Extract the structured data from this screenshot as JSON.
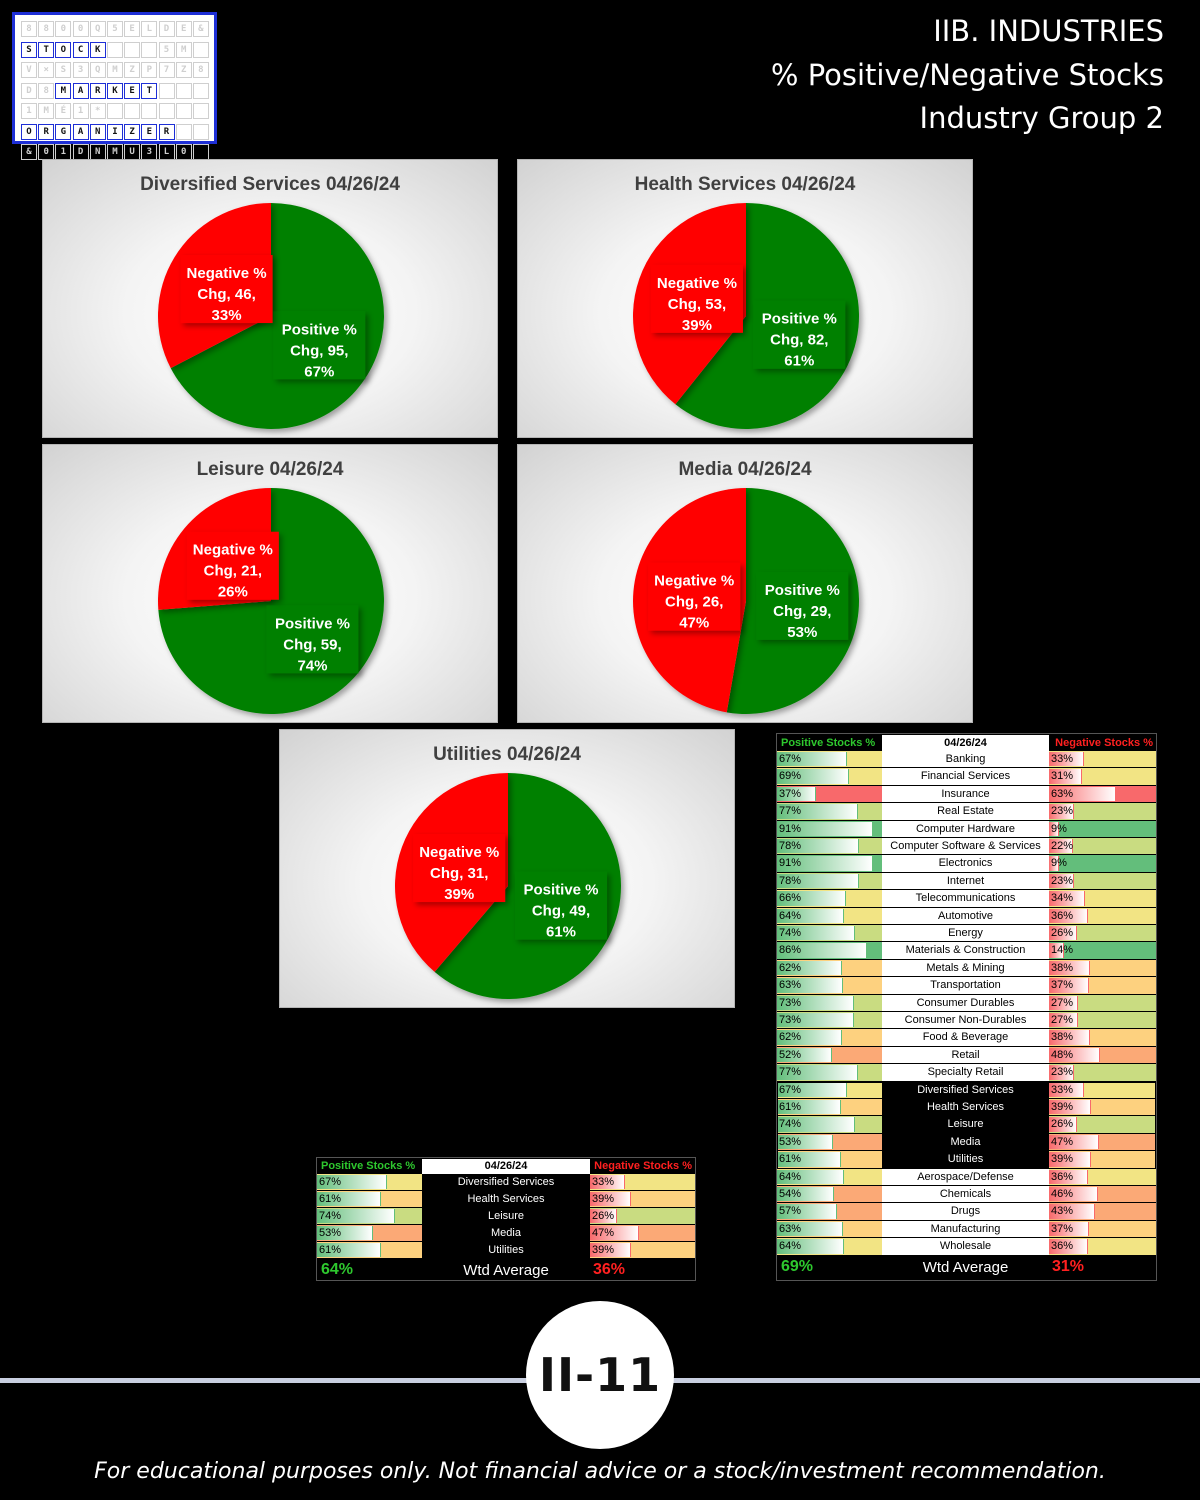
{
  "logo": {
    "rows": [
      {
        "letters": "8800Q5ELDE&",
        "on": []
      },
      {
        "letters": "STOCK   5M",
        "on": [
          0,
          1,
          2,
          3,
          4
        ]
      },
      {
        "letters": "V×S3QMZP7Z8",
        "on": []
      },
      {
        "letters": "D8MARKET",
        "on": [
          2,
          3,
          4,
          5,
          6,
          7
        ]
      },
      {
        "letters": "1MÉ1*   ",
        "on": []
      },
      {
        "letters": "ORGANIZER",
        "on": [
          0,
          1,
          2,
          3,
          4,
          5,
          6,
          7,
          8
        ]
      },
      {
        "letters": "&01DNMU3L0",
        "on": []
      }
    ],
    "brand_words": [
      "STOCK",
      "MARKET",
      "ORGANIZER"
    ],
    "border_color": "#1e2fd6"
  },
  "header": {
    "line1": "IIB. INDUSTRIES",
    "line2": "% Positive/Negative Stocks",
    "line3": "Industry Group 2"
  },
  "colors": {
    "positive": "#008000",
    "negative": "#ff0000",
    "positive_text": "#2ec82e",
    "negative_text": "#ff2020"
  },
  "chart_data": [
    {
      "type": "pie",
      "title": "Diversified Services 04/26/24",
      "slices": [
        {
          "name": "Positive % Chg",
          "value": 95,
          "percent": "67%",
          "color": "#008000"
        },
        {
          "name": "Negative % Chg",
          "value": 46,
          "percent": "33%",
          "color": "#ff0000"
        }
      ],
      "labels": [
        {
          "lines": [
            "Positive %",
            "Chg, 95,",
            "67%"
          ]
        },
        {
          "lines": [
            "Negative %",
            "Chg, 46,",
            "33%"
          ]
        }
      ]
    },
    {
      "type": "pie",
      "title": "Health Services 04/26/24",
      "slices": [
        {
          "name": "Positive % Chg",
          "value": 82,
          "percent": "61%",
          "color": "#008000"
        },
        {
          "name": "Negative % Chg",
          "value": 53,
          "percent": "39%",
          "color": "#ff0000"
        }
      ],
      "labels": [
        {
          "lines": [
            "Positive %",
            "Chg, 82,",
            "61%"
          ]
        },
        {
          "lines": [
            "Negative %",
            "Chg, 53,",
            "39%"
          ]
        }
      ]
    },
    {
      "type": "pie",
      "title": "Leisure 04/26/24",
      "slices": [
        {
          "name": "Positive % Chg",
          "value": 59,
          "percent": "74%",
          "color": "#008000"
        },
        {
          "name": "Negative % Chg",
          "value": 21,
          "percent": "26%",
          "color": "#ff0000"
        }
      ],
      "labels": [
        {
          "lines": [
            "Positive %",
            "Chg, 59,",
            "74%"
          ]
        },
        {
          "lines": [
            "Negative %",
            "Chg, 21,",
            "26%"
          ]
        }
      ]
    },
    {
      "type": "pie",
      "title": "Media 04/26/24",
      "slices": [
        {
          "name": "Positive % Chg",
          "value": 29,
          "percent": "53%",
          "color": "#008000"
        },
        {
          "name": "Negative % Chg",
          "value": 26,
          "percent": "47%",
          "color": "#ff0000"
        }
      ],
      "labels": [
        {
          "lines": [
            "Positive %",
            "Chg, 29,",
            "53%"
          ]
        },
        {
          "lines": [
            "Negative %",
            "Chg, 26,",
            "47%"
          ]
        }
      ]
    },
    {
      "type": "pie",
      "title": "Utilities 04/26/24",
      "slices": [
        {
          "name": "Positive % Chg",
          "value": 49,
          "percent": "61%",
          "color": "#008000"
        },
        {
          "name": "Negative % Chg",
          "value": 31,
          "percent": "39%",
          "color": "#ff0000"
        }
      ],
      "labels": [
        {
          "lines": [
            "Positive %",
            "Chg, 49,",
            "61%"
          ]
        },
        {
          "lines": [
            "Negative %",
            "Chg, 31,",
            "39%"
          ]
        }
      ]
    },
    {
      "type": "table",
      "title": "04/26/24",
      "columns": [
        "Positive Stocks %",
        "04/26/24",
        "Negative Stocks %"
      ],
      "rows": [
        {
          "name": "Diversified Services",
          "pos": 67,
          "neg": 33
        },
        {
          "name": "Health Services",
          "pos": 61,
          "neg": 39
        },
        {
          "name": "Leisure",
          "pos": 74,
          "neg": 26
        },
        {
          "name": "Media",
          "pos": 53,
          "neg": 47
        },
        {
          "name": "Utilities",
          "pos": 61,
          "neg": 39
        }
      ],
      "footer": {
        "pos": "64%",
        "label": "Wtd Average",
        "neg": "36%"
      }
    },
    {
      "type": "table",
      "title": "04/26/24",
      "columns": [
        "Positive Stocks %",
        "04/26/24",
        "Negative Stocks %"
      ],
      "rows": [
        {
          "name": "Banking",
          "pos": 67,
          "neg": 33
        },
        {
          "name": "Financial Services",
          "pos": 69,
          "neg": 31
        },
        {
          "name": "Insurance",
          "pos": 37,
          "neg": 63
        },
        {
          "name": "Real Estate",
          "pos": 77,
          "neg": 23
        },
        {
          "name": "Computer Hardware",
          "pos": 91,
          "neg": 9
        },
        {
          "name": "Computer Software & Services",
          "pos": 78,
          "neg": 22
        },
        {
          "name": "Electronics",
          "pos": 91,
          "neg": 9
        },
        {
          "name": "Internet",
          "pos": 78,
          "neg": 23
        },
        {
          "name": "Telecommunications",
          "pos": 66,
          "neg": 34
        },
        {
          "name": "Automotive",
          "pos": 64,
          "neg": 36
        },
        {
          "name": "Energy",
          "pos": 74,
          "neg": 26
        },
        {
          "name": "Materials & Construction",
          "pos": 86,
          "neg": 14
        },
        {
          "name": "Metals & Mining",
          "pos": 62,
          "neg": 38
        },
        {
          "name": "Transportation",
          "pos": 63,
          "neg": 37
        },
        {
          "name": "Consumer Durables",
          "pos": 73,
          "neg": 27
        },
        {
          "name": "Consumer Non-Durables",
          "pos": 73,
          "neg": 27
        },
        {
          "name": "Food & Beverage",
          "pos": 62,
          "neg": 38
        },
        {
          "name": "Retail",
          "pos": 52,
          "neg": 48
        },
        {
          "name": "Specialty Retail",
          "pos": 77,
          "neg": 23
        },
        {
          "name": "Diversified Services",
          "pos": 67,
          "neg": 33,
          "highlight": true
        },
        {
          "name": "Health Services",
          "pos": 61,
          "neg": 39,
          "highlight": true
        },
        {
          "name": "Leisure",
          "pos": 74,
          "neg": 26,
          "highlight": true
        },
        {
          "name": "Media",
          "pos": 53,
          "neg": 47,
          "highlight": true
        },
        {
          "name": "Utilities",
          "pos": 61,
          "neg": 39,
          "highlight": true
        },
        {
          "name": "Aerospace/Defense",
          "pos": 64,
          "neg": 36
        },
        {
          "name": "Chemicals",
          "pos": 54,
          "neg": 46
        },
        {
          "name": "Drugs",
          "pos": 57,
          "neg": 43
        },
        {
          "name": "Manufacturing",
          "pos": 63,
          "neg": 37
        },
        {
          "name": "Wholesale",
          "pos": 64,
          "neg": 36
        }
      ],
      "footer": {
        "pos": "69%",
        "label": "Wtd Average",
        "neg": "31%"
      }
    }
  ],
  "page_number": "II-11",
  "disclaimer": "For educational purposes only. Not financial advice or a stock/investment recommendation."
}
